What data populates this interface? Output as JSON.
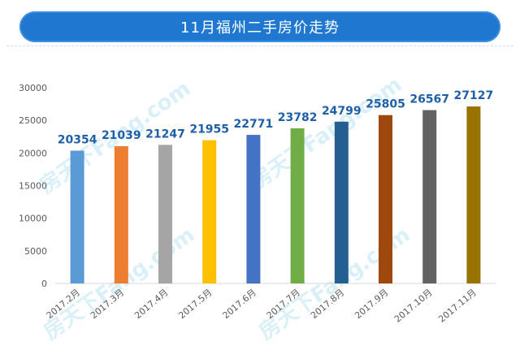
{
  "title": "11月福州二手房价走势",
  "watermark_text": "房天下Fang.com",
  "chart_data": {
    "type": "bar",
    "title": "11月福州二手房价走势",
    "xlabel": "",
    "ylabel": "",
    "categories": [
      "2017.2月",
      "2017.3月",
      "2017.4月",
      "2017.5月",
      "2017.6月",
      "2017.7月",
      "2017.8月",
      "2017.9月",
      "2017.10月",
      "2017.11月"
    ],
    "values": [
      20354,
      21039,
      21247,
      21955,
      22771,
      23782,
      24799,
      25805,
      26567,
      27127
    ],
    "ylim": [
      0,
      30000
    ],
    "yticks": [
      0,
      5000,
      10000,
      15000,
      20000,
      25000,
      30000
    ],
    "bar_colors": [
      "#5b9bd5",
      "#ed7d31",
      "#a5a5a5",
      "#ffc000",
      "#4472c4",
      "#70ad47",
      "#255e91",
      "#9e480e",
      "#636363",
      "#997300"
    ],
    "label_color": "#1f5fa8",
    "grid": false,
    "legend": "none"
  }
}
